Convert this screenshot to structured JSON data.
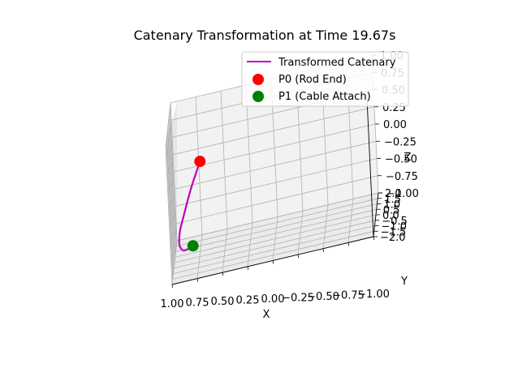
{
  "chart_data": {
    "type": "line",
    "projection": "3d",
    "title": "Catenary Transformation at Time 19.67s",
    "xlabel": "X",
    "ylabel": "Y",
    "zlabel": "Z",
    "xlim": [
      1.0,
      -1.0
    ],
    "ylim": [
      -2.0,
      2.0
    ],
    "zlim": [
      -1.0,
      1.0
    ],
    "x_ticks": [
      "1.00",
      "0.75",
      "0.50",
      "0.25",
      "0.00",
      "−0.25",
      "−0.50",
      "−0.75",
      "−1.00"
    ],
    "y_ticks": [
      "−2.0",
      "−1.5",
      "−1.0",
      "−0.5",
      "0.0",
      "0.5",
      "1.0",
      "1.5",
      "2.0"
    ],
    "z_ticks": [
      "1.00",
      "0.75",
      "0.50",
      "0.25",
      "0.00",
      "−0.25",
      "−0.50",
      "−0.75",
      "−1.00"
    ],
    "grid": true,
    "legend_position": "top-right",
    "series": [
      {
        "name": "Transformed Catenary",
        "kind": "line",
        "color": "#bf00bf",
        "points": [
          [
            0.68,
            -1.4,
            0.58
          ],
          [
            0.72,
            -1.2,
            0.42
          ],
          [
            0.78,
            -0.9,
            0.18
          ],
          [
            0.83,
            -0.6,
            -0.05
          ],
          [
            0.88,
            -0.3,
            -0.3
          ],
          [
            0.93,
            0.0,
            -0.55
          ],
          [
            0.95,
            0.3,
            -0.75
          ],
          [
            0.95,
            0.6,
            -0.88
          ],
          [
            0.92,
            0.8,
            -0.98
          ],
          [
            0.87,
            1.0,
            -1.0
          ],
          [
            0.83,
            1.1,
            -0.99
          ]
        ]
      },
      {
        "name": "P0 (Rod End)",
        "kind": "point",
        "color": "#ff0000",
        "points": [
          [
            0.68,
            -1.4,
            0.58
          ]
        ]
      },
      {
        "name": "P1 (Cable Attach)",
        "kind": "point",
        "color": "#008000",
        "points": [
          [
            0.83,
            1.1,
            -0.99
          ]
        ]
      }
    ]
  }
}
